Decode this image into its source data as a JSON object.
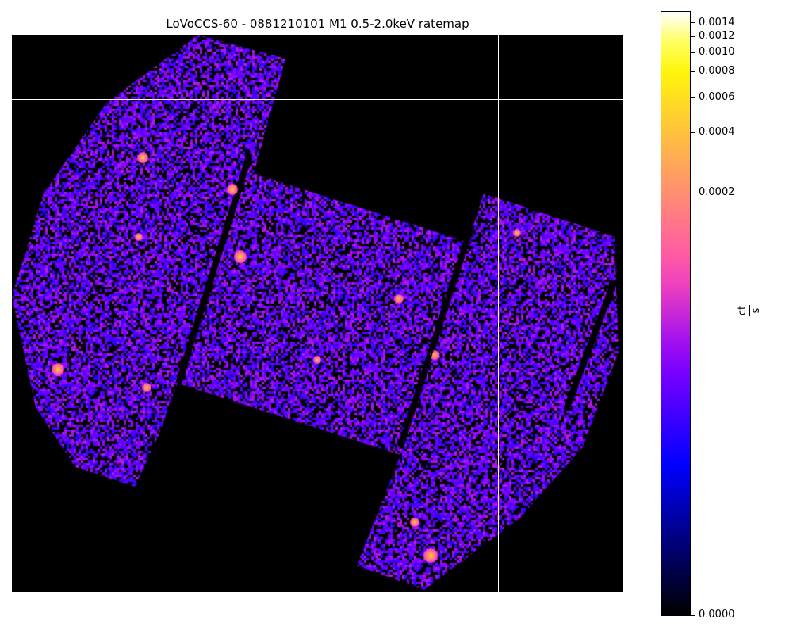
{
  "title": "LoVoCCS-60 - 0881210101 M1 0.5-2.0keV ratemap",
  "image": {
    "description_kind": "x-ray ratemap",
    "crosshair": true
  },
  "colorbar": {
    "colormap": "gnuplot2",
    "scale": "power-law",
    "range": [
      0.0,
      0.0015
    ],
    "ticks": [
      "0.0014",
      "0.0012",
      "0.0010",
      "0.0008",
      "0.0006",
      "0.0004",
      "0.0002",
      "0.0000"
    ],
    "unit_numerator": "ct",
    "unit_denominator": "s"
  },
  "colors": {
    "background": "#000000",
    "crosshair": "#ffffff"
  }
}
